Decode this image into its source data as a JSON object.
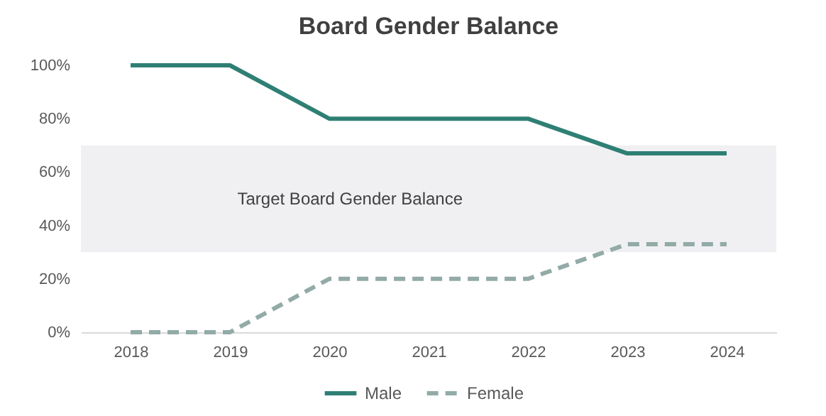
{
  "chart_data": {
    "type": "line",
    "title": "Board Gender Balance",
    "categories": [
      "2018",
      "2019",
      "2020",
      "2021",
      "2022",
      "2023",
      "2024"
    ],
    "series": [
      {
        "name": "Male",
        "color": "#2f7f74",
        "line_style": "solid",
        "values": [
          100,
          100,
          80,
          80,
          80,
          67,
          67
        ]
      },
      {
        "name": "Female",
        "color": "#92aba7",
        "line_style": "dashed",
        "values": [
          0,
          0,
          20,
          20,
          20,
          33,
          33
        ]
      }
    ],
    "ylim": [
      0,
      100
    ],
    "yticks": [
      {
        "value": 0,
        "label": "0%"
      },
      {
        "value": 20,
        "label": "20%"
      },
      {
        "value": 40,
        "label": "40%"
      },
      {
        "value": 60,
        "label": "60%"
      },
      {
        "value": 80,
        "label": "80%"
      },
      {
        "value": 100,
        "label": "100%"
      }
    ],
    "bands": [
      {
        "axis": "y",
        "from": 30,
        "to": 70,
        "label": "Target Board Gender Balance",
        "color": "#f0f0f2"
      }
    ],
    "grid": false,
    "legend": "bottom",
    "marker": "none"
  }
}
